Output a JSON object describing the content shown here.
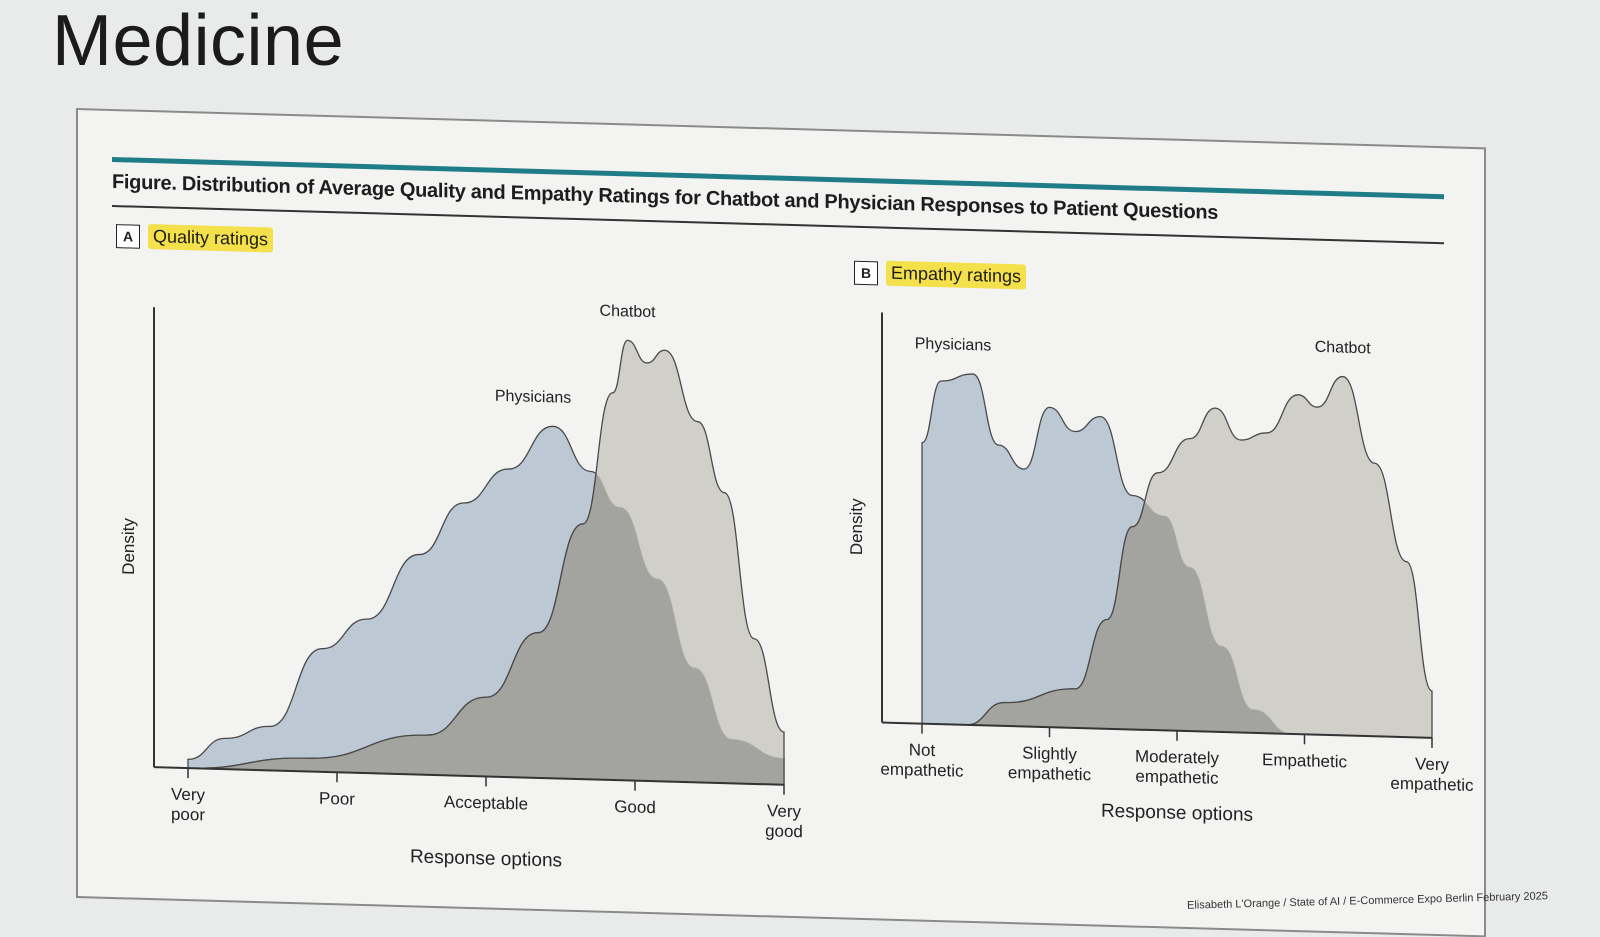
{
  "slide": {
    "title": "Medicine",
    "credit": "Elisabeth L'Orange / State of AI / E-Commerce Expo Berlin February 2025"
  },
  "figure": {
    "caption": "Figure. Distribution of Average Quality and Empathy Ratings for Chatbot and Physician Responses to Patient Questions"
  },
  "colors": {
    "physicians": "#b8c6d2",
    "chatbot": "#cfccc6",
    "overlap": "#a3a39f",
    "stroke": "#4a4a4a",
    "teal": "#1f7d87",
    "highlight": "#f3e04a"
  },
  "chart_data": [
    {
      "panel_letter": "A",
      "title": "Quality ratings",
      "type": "area",
      "xlabel": "Response options",
      "ylabel": "Density",
      "tick_labels": [
        [
          "Very",
          "poor"
        ],
        [
          "Poor"
        ],
        [
          "Acceptable"
        ],
        [
          "Good"
        ],
        [
          "Very",
          "good"
        ]
      ],
      "x_range": [
        1,
        5
      ],
      "y_range": [
        0,
        1
      ],
      "series": [
        {
          "name": "Physicians",
          "points": [
            [
              1.0,
              0.02
            ],
            [
              1.25,
              0.07
            ],
            [
              1.55,
              0.1
            ],
            [
              1.9,
              0.28
            ],
            [
              2.2,
              0.35
            ],
            [
              2.55,
              0.5
            ],
            [
              2.85,
              0.62
            ],
            [
              3.15,
              0.7
            ],
            [
              3.45,
              0.8
            ],
            [
              3.7,
              0.7
            ],
            [
              3.9,
              0.62
            ],
            [
              4.15,
              0.46
            ],
            [
              4.4,
              0.26
            ],
            [
              4.65,
              0.1
            ],
            [
              5.0,
              0.06
            ]
          ]
        },
        {
          "name": "Chatbot",
          "points": [
            [
              1.0,
              0.0
            ],
            [
              1.8,
              0.03
            ],
            [
              2.6,
              0.09
            ],
            [
              3.0,
              0.18
            ],
            [
              3.35,
              0.33
            ],
            [
              3.65,
              0.58
            ],
            [
              3.85,
              0.88
            ],
            [
              3.95,
              1.0
            ],
            [
              4.08,
              0.95
            ],
            [
              4.2,
              0.98
            ],
            [
              4.42,
              0.82
            ],
            [
              4.6,
              0.66
            ],
            [
              4.8,
              0.33
            ],
            [
              5.0,
              0.12
            ]
          ]
        }
      ]
    },
    {
      "panel_letter": "B",
      "title": "Empathy ratings",
      "type": "area",
      "xlabel": "Response options",
      "ylabel": "Density",
      "tick_labels": [
        [
          "Not",
          "empathetic"
        ],
        [
          "Slightly",
          "empathetic"
        ],
        [
          "Moderately",
          "empathetic"
        ],
        [
          "Empathetic"
        ],
        [
          "Very",
          "empathetic"
        ]
      ],
      "x_range": [
        1,
        5
      ],
      "y_range": [
        0,
        1
      ],
      "series": [
        {
          "name": "Physicians",
          "points": [
            [
              1.0,
              0.72
            ],
            [
              1.15,
              0.88
            ],
            [
              1.4,
              0.9
            ],
            [
              1.6,
              0.72
            ],
            [
              1.8,
              0.66
            ],
            [
              2.0,
              0.82
            ],
            [
              2.2,
              0.76
            ],
            [
              2.4,
              0.8
            ],
            [
              2.65,
              0.6
            ],
            [
              2.9,
              0.55
            ],
            [
              3.1,
              0.42
            ],
            [
              3.35,
              0.22
            ],
            [
              3.6,
              0.06
            ],
            [
              3.9,
              0.0
            ]
          ]
        },
        {
          "name": "Chatbot",
          "points": [
            [
              1.0,
              0.0
            ],
            [
              1.35,
              0.0
            ],
            [
              1.65,
              0.06
            ],
            [
              2.2,
              0.1
            ],
            [
              2.45,
              0.28
            ],
            [
              2.65,
              0.52
            ],
            [
              2.85,
              0.66
            ],
            [
              3.1,
              0.75
            ],
            [
              3.3,
              0.83
            ],
            [
              3.5,
              0.75
            ],
            [
              3.7,
              0.77
            ],
            [
              3.95,
              0.87
            ],
            [
              4.1,
              0.84
            ],
            [
              4.3,
              0.92
            ],
            [
              4.55,
              0.7
            ],
            [
              4.8,
              0.45
            ],
            [
              5.0,
              0.12
            ]
          ]
        }
      ]
    }
  ]
}
